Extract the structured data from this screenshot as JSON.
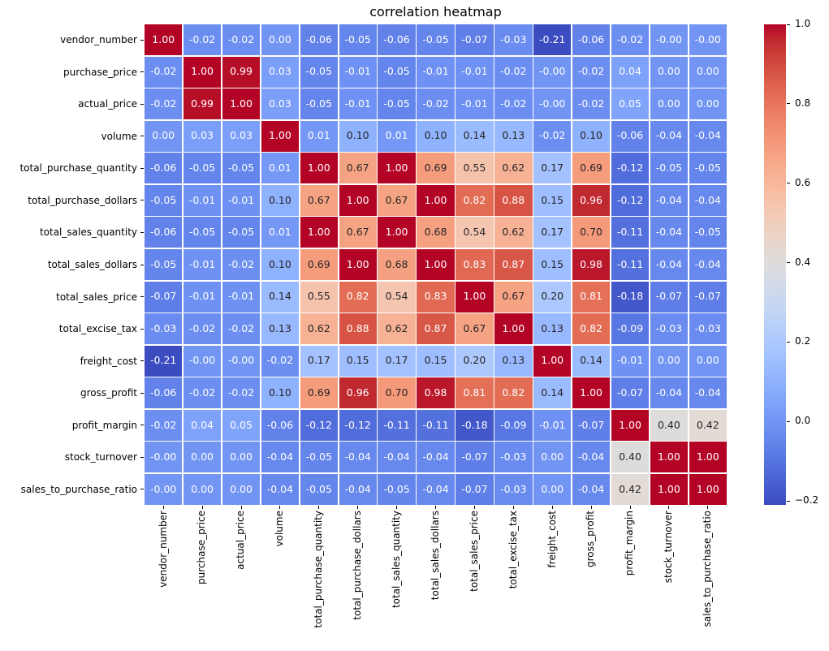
{
  "colors": {
    "background": "#ffffff",
    "cell_text_light": "#ffffff",
    "cell_text_dark": "#262626",
    "tick_color": "#000000",
    "cmap_min_color": "#3b4cc0",
    "cmap_mid_color": "#dddddd",
    "cmap_max_color": "#b40426"
  },
  "chart_data": {
    "type": "heatmap",
    "title": "correlation heatmap",
    "colormap": "coolwarm",
    "vmin": -0.21,
    "vmax": 1.0,
    "grid": false,
    "legend_position": "colorbar-right",
    "x_tick_rotation": 90,
    "annotations": true,
    "labels": [
      "vendor_number",
      "purchase_price",
      "actual_price",
      "volume",
      "total_purchase_quantity",
      "total_purchase_dollars",
      "total_sales_quantity",
      "total_sales_dollars",
      "total_sales_price",
      "total_excise_tax",
      "freight_cost",
      "gross_profit",
      "profit_margin",
      "stock_turnover",
      "sales_to_purchase_ratio"
    ],
    "matrix": [
      [
        "1.00",
        "-0.02",
        "-0.02",
        "0.00",
        "-0.06",
        "-0.05",
        "-0.06",
        "-0.05",
        "-0.07",
        "-0.03",
        "-0.21",
        "-0.06",
        "-0.02",
        "-0.00",
        "-0.00"
      ],
      [
        "-0.02",
        "1.00",
        "0.99",
        "0.03",
        "-0.05",
        "-0.01",
        "-0.05",
        "-0.01",
        "-0.01",
        "-0.02",
        "-0.00",
        "-0.02",
        "0.04",
        "0.00",
        "0.00"
      ],
      [
        "-0.02",
        "0.99",
        "1.00",
        "0.03",
        "-0.05",
        "-0.01",
        "-0.05",
        "-0.02",
        "-0.01",
        "-0.02",
        "-0.00",
        "-0.02",
        "0.05",
        "0.00",
        "0.00"
      ],
      [
        "0.00",
        "0.03",
        "0.03",
        "1.00",
        "0.01",
        "0.10",
        "0.01",
        "0.10",
        "0.14",
        "0.13",
        "-0.02",
        "0.10",
        "-0.06",
        "-0.04",
        "-0.04"
      ],
      [
        "-0.06",
        "-0.05",
        "-0.05",
        "0.01",
        "1.00",
        "0.67",
        "1.00",
        "0.69",
        "0.55",
        "0.62",
        "0.17",
        "0.69",
        "-0.12",
        "-0.05",
        "-0.05"
      ],
      [
        "-0.05",
        "-0.01",
        "-0.01",
        "0.10",
        "0.67",
        "1.00",
        "0.67",
        "1.00",
        "0.82",
        "0.88",
        "0.15",
        "0.96",
        "-0.12",
        "-0.04",
        "-0.04"
      ],
      [
        "-0.06",
        "-0.05",
        "-0.05",
        "0.01",
        "1.00",
        "0.67",
        "1.00",
        "0.68",
        "0.54",
        "0.62",
        "0.17",
        "0.70",
        "-0.11",
        "-0.04",
        "-0.05"
      ],
      [
        "-0.05",
        "-0.01",
        "-0.02",
        "0.10",
        "0.69",
        "1.00",
        "0.68",
        "1.00",
        "0.83",
        "0.87",
        "0.15",
        "0.98",
        "-0.11",
        "-0.04",
        "-0.04"
      ],
      [
        "-0.07",
        "-0.01",
        "-0.01",
        "0.14",
        "0.55",
        "0.82",
        "0.54",
        "0.83",
        "1.00",
        "0.67",
        "0.20",
        "0.81",
        "-0.18",
        "-0.07",
        "-0.07"
      ],
      [
        "-0.03",
        "-0.02",
        "-0.02",
        "0.13",
        "0.62",
        "0.88",
        "0.62",
        "0.87",
        "0.67",
        "1.00",
        "0.13",
        "0.82",
        "-0.09",
        "-0.03",
        "-0.03"
      ],
      [
        "-0.21",
        "-0.00",
        "-0.00",
        "-0.02",
        "0.17",
        "0.15",
        "0.17",
        "0.15",
        "0.20",
        "0.13",
        "1.00",
        "0.14",
        "-0.01",
        "0.00",
        "0.00"
      ],
      [
        "-0.06",
        "-0.02",
        "-0.02",
        "0.10",
        "0.69",
        "0.96",
        "0.70",
        "0.98",
        "0.81",
        "0.82",
        "0.14",
        "1.00",
        "-0.07",
        "-0.04",
        "-0.04"
      ],
      [
        "-0.02",
        "0.04",
        "0.05",
        "-0.06",
        "-0.12",
        "-0.12",
        "-0.11",
        "-0.11",
        "-0.18",
        "-0.09",
        "-0.01",
        "-0.07",
        "1.00",
        "0.40",
        "0.42"
      ],
      [
        "-0.00",
        "0.00",
        "0.00",
        "-0.04",
        "-0.05",
        "-0.04",
        "-0.04",
        "-0.04",
        "-0.07",
        "-0.03",
        "0.00",
        "-0.04",
        "0.40",
        "1.00",
        "1.00"
      ],
      [
        "-0.00",
        "0.00",
        "0.00",
        "-0.04",
        "-0.05",
        "-0.04",
        "-0.05",
        "-0.04",
        "-0.07",
        "-0.03",
        "0.00",
        "-0.04",
        "0.42",
        "1.00",
        "1.00"
      ]
    ],
    "colorbar_ticks": [
      {
        "label": "1.0",
        "value": 1.0
      },
      {
        "label": "0.8",
        "value": 0.8
      },
      {
        "label": "0.6",
        "value": 0.6
      },
      {
        "label": "0.4",
        "value": 0.4
      },
      {
        "label": "0.2",
        "value": 0.2
      },
      {
        "label": "0.0",
        "value": 0.0
      },
      {
        "label": "−0.2",
        "value": -0.2
      }
    ]
  }
}
